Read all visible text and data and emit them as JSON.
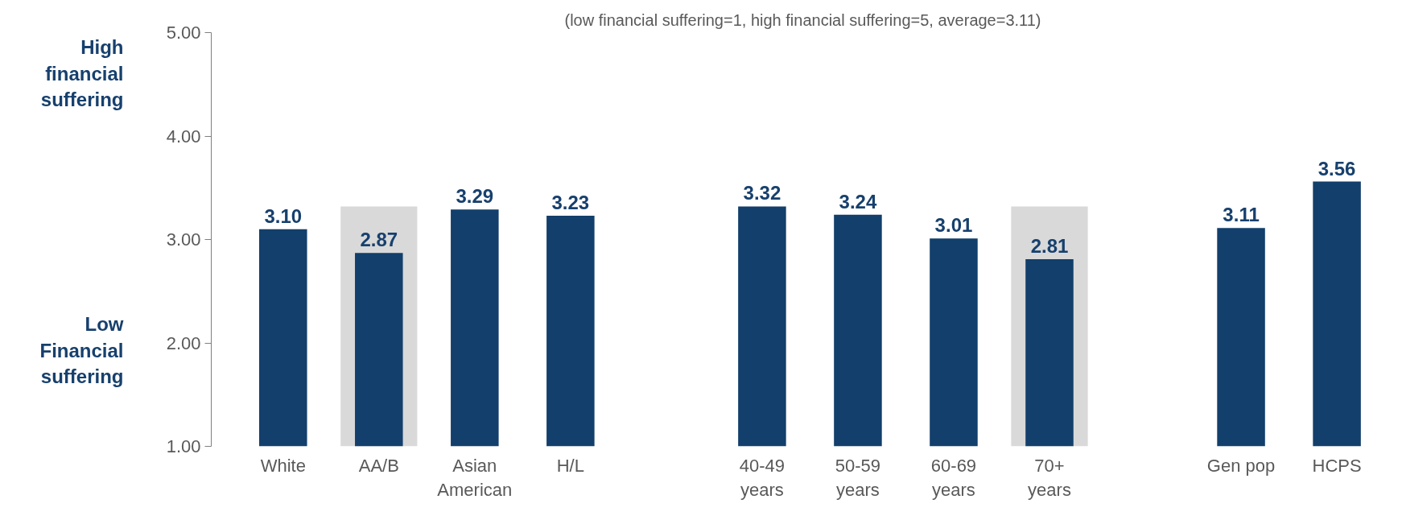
{
  "chart_data": {
    "type": "bar",
    "subtitle": "(low financial suffering=1, high financial suffering=5, average=3.11)",
    "categories": [
      "White",
      "AA/B",
      "Asian American",
      "H/L",
      null,
      "40-49 years",
      "50-59 years",
      "60-69 years",
      "70+ years",
      null,
      "Gen pop",
      "HCPS"
    ],
    "values": [
      3.1,
      2.87,
      3.29,
      3.23,
      null,
      3.32,
      3.24,
      3.01,
      2.81,
      null,
      3.11,
      3.56
    ],
    "color": "#123f6b",
    "ylim": [
      1,
      5
    ],
    "yticks": [
      {
        "value": 1,
        "label": "1.00"
      },
      {
        "value": 2,
        "label": "2.00"
      },
      {
        "value": 3,
        "label": "3.00"
      },
      {
        "value": 4,
        "label": "4.00"
      },
      {
        "value": 5,
        "label": "5.00"
      }
    ],
    "grid": false,
    "data_labels": true,
    "value_labels": [
      "3.10",
      "2.87",
      "3.29",
      "3.23",
      null,
      "3.32",
      "3.24",
      "3.01",
      "2.81",
      null,
      "3.11",
      "3.56"
    ],
    "bands": [
      {
        "axis": "x",
        "from": "AA/B",
        "to": "AA/B",
        "color": "#d9d9d9"
      },
      {
        "axis": "x",
        "from": "70+ years",
        "to": "70+ years",
        "color": "#d9d9d9"
      }
    ],
    "annotations": [
      "High financial suffering",
      "Low Financial suffering"
    ]
  }
}
